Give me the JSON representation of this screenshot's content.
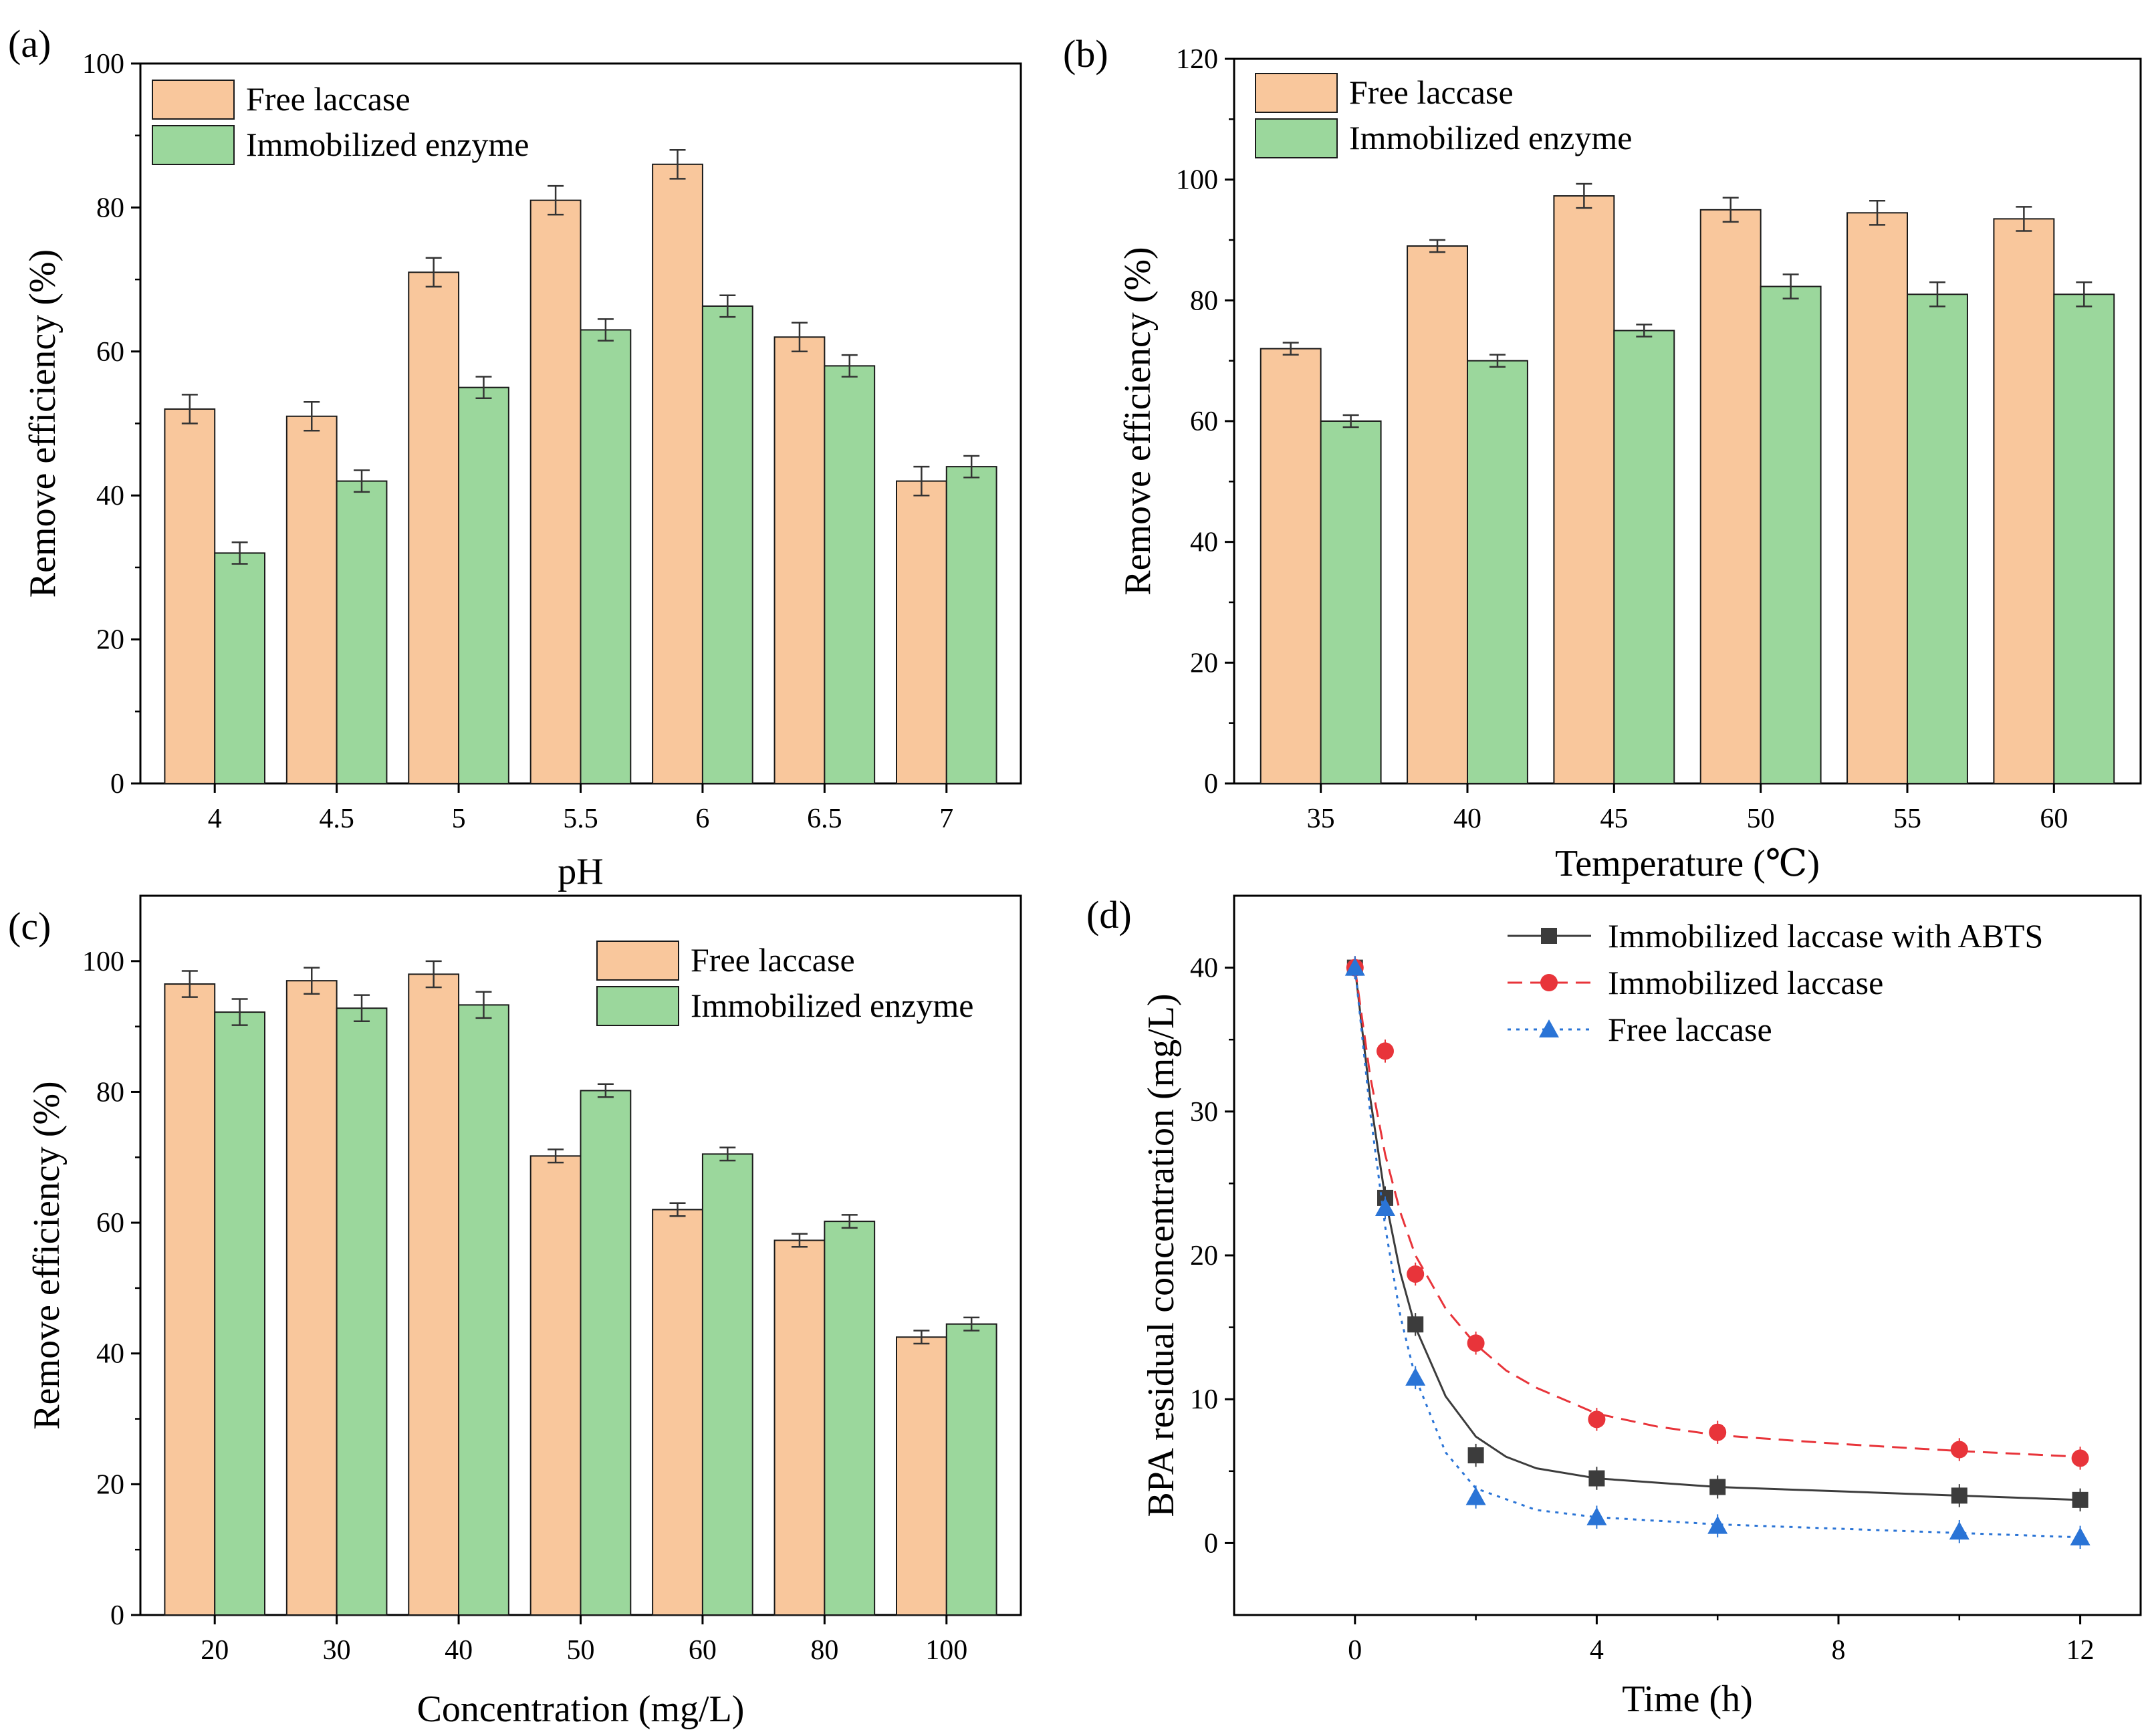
{
  "colors": {
    "free_bar": "#F9C79C",
    "immobilized_bar": "#9BD79C",
    "bar_edge": "#1a1a1a",
    "line_abts": "#3c3c3c",
    "line_immobilized": "#E8343A",
    "line_free": "#2A74D6"
  },
  "chart_data": [
    {
      "panel": "(a)",
      "type": "bar",
      "xlabel": "pH",
      "ylabel": "Remove efficiency (%)",
      "ylim": [
        0,
        100
      ],
      "yticks": [
        0,
        20,
        40,
        60,
        80,
        100
      ],
      "categories": [
        "4",
        "4.5",
        "5",
        "5.5",
        "6",
        "6.5",
        "7"
      ],
      "legend_position": "top-left",
      "series": [
        {
          "name": "Free laccase",
          "color_key": "free_bar",
          "values": [
            52,
            51,
            71,
            81,
            86,
            62,
            42
          ],
          "errors": [
            2,
            2,
            2,
            2,
            2,
            2,
            2
          ]
        },
        {
          "name": "Immobilized enzyme",
          "color_key": "immobilized_bar",
          "values": [
            32,
            42,
            55,
            63,
            66.3,
            58,
            44
          ],
          "errors": [
            1.5,
            1.5,
            1.5,
            1.5,
            1.5,
            1.5,
            1.5
          ]
        }
      ]
    },
    {
      "panel": "(b)",
      "type": "bar",
      "xlabel": "Temperature (℃)",
      "ylabel": "Remove efficiency (%)",
      "ylim": [
        0,
        120
      ],
      "yticks": [
        0,
        20,
        40,
        60,
        80,
        100,
        120
      ],
      "categories": [
        "35",
        "40",
        "45",
        "50",
        "55",
        "60"
      ],
      "legend_position": "top-left",
      "series": [
        {
          "name": "Free laccase",
          "color_key": "free_bar",
          "values": [
            72,
            89,
            97.3,
            95,
            94.5,
            93.5
          ],
          "errors": [
            1,
            1,
            2,
            2,
            2,
            2
          ]
        },
        {
          "name": "Immobilized enzyme",
          "color_key": "immobilized_bar",
          "values": [
            60,
            70,
            75,
            82.3,
            81,
            81
          ],
          "errors": [
            1,
            1,
            1,
            2,
            2,
            2
          ]
        }
      ]
    },
    {
      "panel": "(c)",
      "type": "bar",
      "xlabel": "Concentration (mg/L)",
      "ylabel": "Remove efficiency (%)",
      "ylim": [
        0,
        110
      ],
      "yticks": [
        0,
        20,
        40,
        60,
        80,
        100
      ],
      "categories": [
        "20",
        "30",
        "40",
        "50",
        "60",
        "80",
        "100"
      ],
      "legend_position": "top-right",
      "series": [
        {
          "name": "Free laccase",
          "color_key": "free_bar",
          "values": [
            96.5,
            97,
            98,
            70.2,
            62,
            57.3,
            42.5
          ],
          "errors": [
            2,
            2,
            2,
            1,
            1,
            1,
            1
          ]
        },
        {
          "name": "Immobilized enzyme",
          "color_key": "immobilized_bar",
          "values": [
            92.2,
            92.8,
            93.3,
            80.2,
            70.5,
            60.2,
            44.5
          ],
          "errors": [
            2,
            2,
            2,
            1,
            1,
            1,
            1
          ]
        }
      ]
    },
    {
      "panel": "(d)",
      "type": "line",
      "xlabel": "Time (h)",
      "ylabel": "BPA residual concentration (mg/L)",
      "xlim": [
        -2,
        13
      ],
      "ylim": [
        -5,
        45
      ],
      "xticks": [
        0,
        4,
        8,
        12
      ],
      "yticks": [
        0,
        10,
        20,
        30,
        40
      ],
      "legend_position": "top-right",
      "series": [
        {
          "name": "Immobilized laccase with ABTS",
          "color_key": "line_abts",
          "marker": "square",
          "dash": "solid",
          "x": [
            0,
            0.5,
            1,
            2,
            4,
            6,
            10,
            12
          ],
          "y": [
            40,
            24,
            15.2,
            6.1,
            4.5,
            3.9,
            3.3,
            3.0
          ],
          "fit_x": [
            0,
            0.25,
            0.5,
            0.75,
            1,
            1.5,
            2,
            2.5,
            3,
            4,
            6,
            8,
            10,
            12
          ],
          "fit_y": [
            40,
            31,
            24,
            18.8,
            15,
            10.2,
            7.4,
            6.0,
            5.2,
            4.5,
            3.9,
            3.6,
            3.3,
            3.0
          ]
        },
        {
          "name": "Immobilized laccase",
          "color_key": "line_immobilized",
          "marker": "circle",
          "dash": "dashed",
          "x": [
            0,
            0.5,
            1,
            2,
            4,
            6,
            10,
            12
          ],
          "y": [
            40,
            34.2,
            18.7,
            13.9,
            8.6,
            7.7,
            6.5,
            5.9
          ],
          "fit_x": [
            0,
            0.25,
            0.5,
            0.75,
            1,
            1.5,
            2,
            2.5,
            3,
            4,
            5,
            6,
            8,
            10,
            12
          ],
          "fit_y": [
            40,
            32.5,
            27,
            23,
            20,
            16.3,
            13.8,
            12.0,
            10.8,
            9.0,
            8.1,
            7.5,
            6.9,
            6.4,
            6.0
          ]
        },
        {
          "name": "Free laccase",
          "color_key": "line_free",
          "marker": "triangle",
          "dash": "dotted",
          "x": [
            0,
            0.5,
            1,
            2,
            4,
            6,
            10,
            12
          ],
          "y": [
            40,
            23.3,
            11.5,
            3.2,
            1.8,
            1.2,
            0.8,
            0.4
          ],
          "fit_x": [
            0,
            0.25,
            0.5,
            0.75,
            1,
            1.5,
            2,
            3,
            4,
            6,
            8,
            10,
            12
          ],
          "fit_y": [
            40,
            30,
            22,
            15.8,
            11.5,
            6.3,
            3.8,
            2.3,
            1.8,
            1.3,
            1.0,
            0.7,
            0.4
          ]
        }
      ]
    }
  ]
}
